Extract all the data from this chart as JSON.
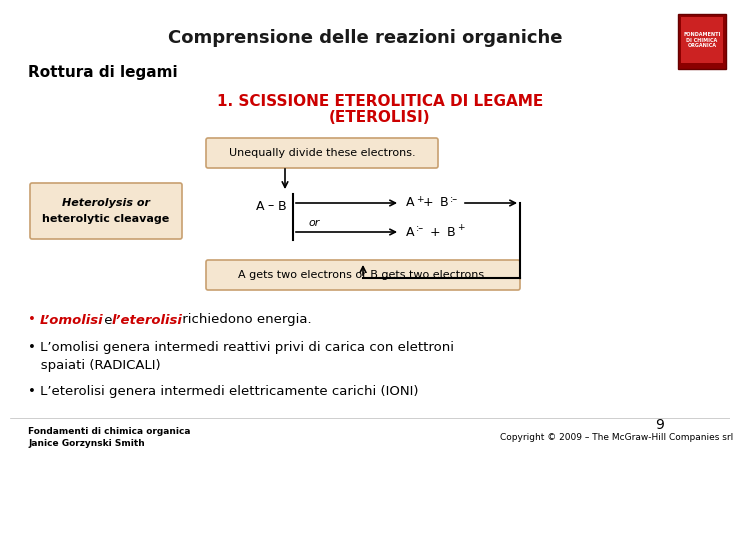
{
  "title": "Comprensione delle reazioni organiche",
  "subtitle": "Rottura di legami",
  "section_title_line1": "1. SCISSIONE ETEROLITICA DI LEGAME",
  "section_title_line2": "(ETEROLISI)",
  "box1_line1": "Heterolysis or",
  "box1_line2": "heterolytic cleavage",
  "box2_text": "Unequally divide these electrons.",
  "box3_text": "A gets two electrons or B gets two electrons.",
  "bullet1_red1": "L’omolisi",
  "bullet1_mid": " e ",
  "bullet1_red2": "l’eterolisi",
  "bullet1_end": " richiedono energia.",
  "bullet2a": "• L’omolisi genera intermedi reattivi privi di carica con elettroni",
  "bullet2b": "   spaiati (RADICALI)",
  "bullet3": "• L’eterolisi genera intermedi elettricamente carichi (IONI)",
  "footer_left1": "Fondamenti di chimica organica",
  "footer_left2": "Janice Gorzynski Smith",
  "footer_right": "Copyright © 2009 – The McGraw-Hill Companies srl",
  "page_number": "9",
  "bg_color": "#ffffff",
  "title_color": "#1a1a1a",
  "section_color": "#cc0000",
  "box_bg": "#f5e6d0",
  "box_border": "#c8a070",
  "bullet_red": "#cc0000",
  "normal_color": "#000000",
  "title_fontsize": 13,
  "subtitle_fontsize": 11,
  "section_fontsize": 11,
  "diagram_fontsize": 8,
  "bullet_fontsize": 9.5,
  "footer_fontsize": 6.5
}
